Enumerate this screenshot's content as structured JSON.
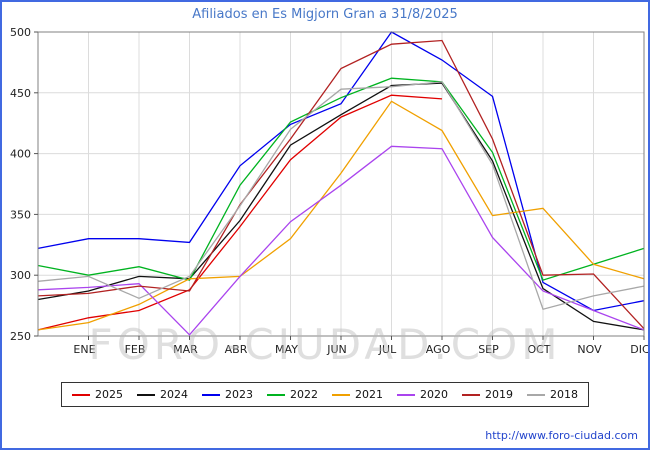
{
  "header": {
    "title": "Afiliados en Es Migjorn Gran a 31/8/2025"
  },
  "watermark": {
    "text": "FORO-CIUDAD.COM"
  },
  "footer": {
    "url": "http://www.foro-ciudad.com"
  },
  "chart_data": {
    "type": "line",
    "title": "Afiliados en Es Migjorn Gran a 31/8/2025",
    "x_labels": [
      "ENE",
      "FEB",
      "MAR",
      "ABR",
      "MAY",
      "JUN",
      "JUL",
      "AGO",
      "SEP",
      "OCT",
      "NOV",
      "DIC"
    ],
    "ylabel": "",
    "xlabel": "",
    "ylim": [
      250,
      500
    ],
    "y_ticks": [
      250,
      300,
      350,
      400,
      450,
      500
    ],
    "grid": true,
    "legend_position": "bottom",
    "note": "start = value drawn at the left axis edge before ENE",
    "series": [
      {
        "name": "2025",
        "color": "#e00000",
        "start": 255,
        "values": [
          265,
          271,
          288,
          340,
          395,
          430,
          448,
          445,
          null,
          null,
          null,
          null
        ]
      },
      {
        "name": "2024",
        "color": "#111111",
        "start": 280,
        "values": [
          287,
          299,
          297,
          345,
          407,
          432,
          456,
          458,
          394,
          289,
          262,
          255
        ]
      },
      {
        "name": "2023",
        "color": "#0000ee",
        "start": 322,
        "values": [
          330,
          330,
          327,
          390,
          424,
          441,
          500,
          477,
          447,
          294,
          271,
          279
        ]
      },
      {
        "name": "2022",
        "color": "#00b320",
        "start": 308,
        "values": [
          300,
          307,
          296,
          374,
          426,
          446,
          462,
          459,
          401,
          296,
          309,
          322
        ]
      },
      {
        "name": "2021",
        "color": "#f0a000",
        "start": 255,
        "values": [
          261,
          276,
          297,
          299,
          330,
          384,
          443,
          419,
          349,
          355,
          309,
          297
        ]
      },
      {
        "name": "2020",
        "color": "#aa44ee",
        "start": 288,
        "values": [
          290,
          293,
          251,
          299,
          344,
          374,
          406,
          404,
          331,
          287,
          271,
          255
        ]
      },
      {
        "name": "2019",
        "color": "#b22222",
        "start": 283,
        "values": [
          285,
          291,
          287,
          358,
          412,
          470,
          490,
          493,
          412,
          300,
          301,
          256
        ]
      },
      {
        "name": "2018",
        "color": "#a8a8a8",
        "start": 295,
        "values": [
          299,
          281,
          299,
          357,
          420,
          453,
          455,
          459,
          391,
          272,
          283,
          291
        ]
      }
    ]
  }
}
